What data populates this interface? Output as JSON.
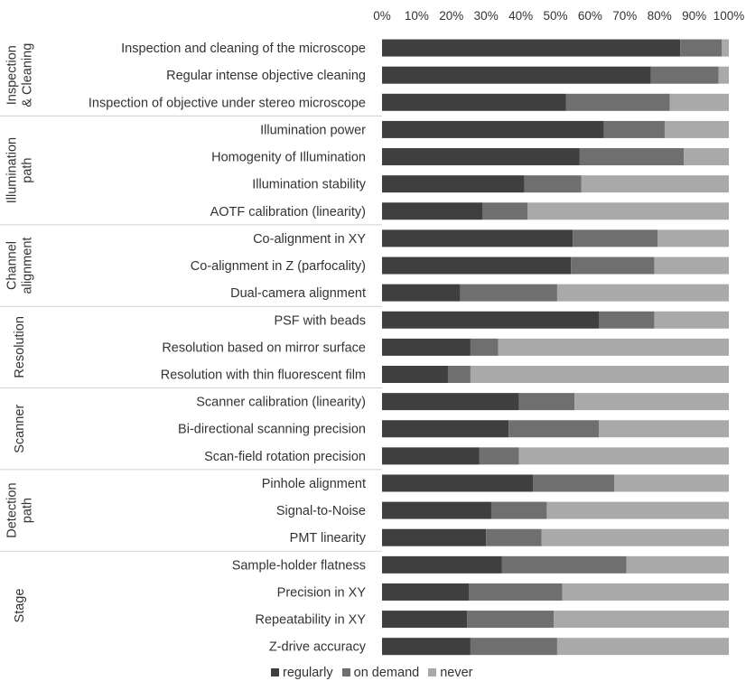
{
  "chart_data": {
    "type": "bar",
    "orientation": "horizontal",
    "stacked": true,
    "title": "",
    "xlabel": "",
    "ylabel": "",
    "xlim": [
      0,
      100
    ],
    "x_ticks": [
      "0%",
      "10%",
      "20%",
      "30%",
      "40%",
      "50%",
      "60%",
      "70%",
      "80%",
      "90%",
      "100%"
    ],
    "x_axis_position": "top",
    "grid": false,
    "legend_position": "bottom",
    "colors": {
      "regularly": "#3f3f3f",
      "on_demand": "#6f6f6f",
      "never": "#a9a9a9",
      "group_divider": "#d0d0d0"
    },
    "legend": [
      {
        "key": "regularly",
        "label": "regularly"
      },
      {
        "key": "on_demand",
        "label": "on demand"
      },
      {
        "key": "never",
        "label": "never"
      }
    ],
    "groups": [
      {
        "label_lines": [
          "Inspection",
          "& Cleaning"
        ],
        "items": [
          {
            "label": "Inspection and cleaning of the microscope",
            "values": [
              86,
              12,
              2
            ]
          },
          {
            "label": "Regular intense objective cleaning",
            "values": [
              77.5,
              19.5,
              3
            ]
          },
          {
            "label": "Inspection of objective under stereo microscope",
            "values": [
              53,
              30,
              17
            ]
          }
        ]
      },
      {
        "label_lines": [
          "Illumination",
          "path"
        ],
        "items": [
          {
            "label": "Illumination power",
            "values": [
              64,
              17.5,
              18.5
            ]
          },
          {
            "label": "Homogenity of Illumination",
            "values": [
              57,
              30,
              13
            ]
          },
          {
            "label": "Illumination stability",
            "values": [
              41,
              16.5,
              42.5
            ]
          },
          {
            "label": "AOTF calibration (linearity)",
            "values": [
              29,
              13,
              58
            ]
          }
        ]
      },
      {
        "label_lines": [
          "Channel",
          "alignment"
        ],
        "items": [
          {
            "label": "Co-alignment in XY",
            "values": [
              55,
              24.5,
              20.5
            ]
          },
          {
            "label": "Co-alignment in Z (parfocality)",
            "values": [
              54.5,
              24,
              21.5
            ]
          },
          {
            "label": "Dual-camera alignment",
            "values": [
              22.5,
              28,
              49.5
            ]
          }
        ]
      },
      {
        "label_lines": [
          "Resolution"
        ],
        "items": [
          {
            "label": "PSF with beads",
            "values": [
              62.5,
              16,
              21.5
            ]
          },
          {
            "label": "Resolution based on mirror surface",
            "values": [
              25.5,
              8,
              66.5
            ]
          },
          {
            "label": "Resolution with thin fluorescent film",
            "values": [
              19,
              6.5,
              74.5
            ]
          }
        ]
      },
      {
        "label_lines": [
          "Scanner"
        ],
        "items": [
          {
            "label": "Scanner calibration (linearity)",
            "values": [
              39.5,
              16,
              44.5
            ]
          },
          {
            "label": "Bi-directional scanning precision",
            "values": [
              36.5,
              26,
              37.5
            ]
          },
          {
            "label": "Scan-field rotation precision",
            "values": [
              28,
              11.5,
              60.5
            ]
          }
        ]
      },
      {
        "label_lines": [
          "Detection",
          "path"
        ],
        "items": [
          {
            "label": "Pinhole alignment",
            "values": [
              43.5,
              23.5,
              33
            ]
          },
          {
            "label": "Signal-to-Noise",
            "values": [
              31.5,
              16,
              52.5
            ]
          },
          {
            "label": "PMT linearity",
            "values": [
              30,
              16,
              54
            ]
          }
        ]
      },
      {
        "label_lines": [
          "Stage"
        ],
        "items": [
          {
            "label": "Sample-holder flatness",
            "values": [
              34.5,
              36,
              29.5
            ]
          },
          {
            "label": "Precision in XY",
            "values": [
              25,
              27,
              48
            ]
          },
          {
            "label": "Repeatability in XY",
            "values": [
              24.5,
              25,
              50.5
            ]
          },
          {
            "label": "Z-drive accuracy",
            "values": [
              25.5,
              25,
              49.5
            ]
          }
        ]
      }
    ]
  }
}
